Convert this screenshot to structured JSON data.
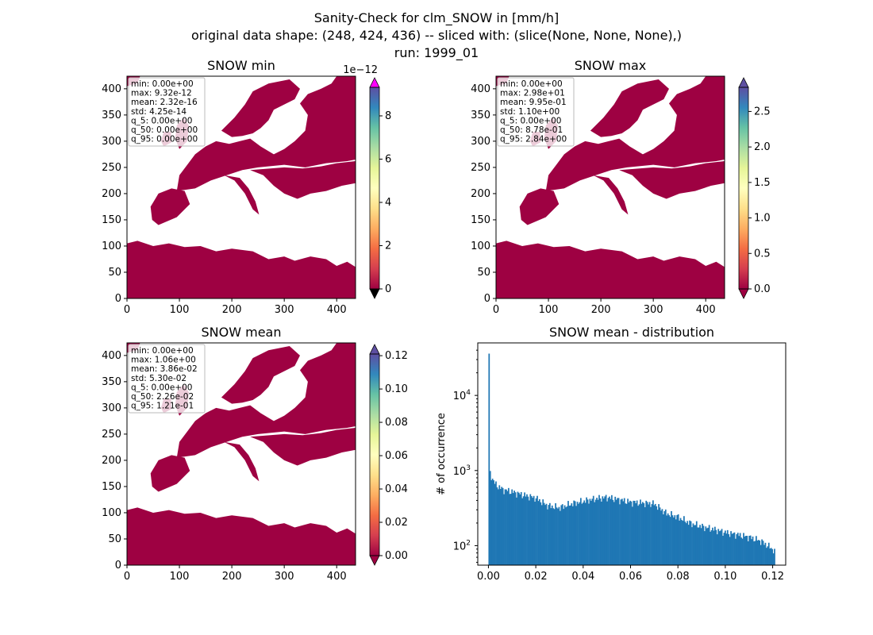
{
  "suptitle": {
    "line1": "Sanity-Check for clm_SNOW in [mm/h]",
    "line2": "original data shape: (248, 424, 436) -- sliced with: (slice(None, None, None),)",
    "line3": "run: 1999_01"
  },
  "colors": {
    "land_low": "#9e0142",
    "hist_bar": "#1f77b4",
    "cbar_over_min": "#ff00ff"
  },
  "colormap": "Spectral",
  "chart_data": [
    {
      "type": "heatmap",
      "title": "SNOW min",
      "xlim": [
        0,
        436
      ],
      "ylim": [
        0,
        424
      ],
      "xticks": [
        0,
        100,
        200,
        300,
        400
      ],
      "yticks": [
        0,
        50,
        100,
        150,
        200,
        250,
        300,
        350,
        400
      ],
      "colorbar": {
        "range": [
          0,
          9.32e-12
        ],
        "ticks": [
          0,
          2,
          4,
          6,
          8
        ],
        "offset_label": "1e−12",
        "extend": "both"
      },
      "stats": [
        "min: 0.00e+00",
        "max: 9.32e-12",
        "mean: 2.32e-16",
        "std: 4.25e-14",
        "q_5: 0.00e+00",
        "q_50: 0.00e+00",
        "q_95: 0.00e+00"
      ]
    },
    {
      "type": "heatmap",
      "title": "SNOW max",
      "xlim": [
        0,
        436
      ],
      "ylim": [
        0,
        424
      ],
      "xticks": [
        0,
        100,
        200,
        300,
        400
      ],
      "yticks": [
        0,
        50,
        100,
        150,
        200,
        250,
        300,
        350,
        400
      ],
      "colorbar": {
        "range": [
          0,
          2.84
        ],
        "ticks": [
          "0.0",
          "0.5",
          "1.0",
          "1.5",
          "2.0",
          "2.5"
        ],
        "extend": "both"
      },
      "stats": [
        "min: 0.00e+00",
        "max: 2.98e+01",
        "mean: 9.95e-01",
        "std: 1.10e+00",
        "q_5: 0.00e+00",
        "q_50: 8.78e-01",
        "q_95: 2.84e+00"
      ]
    },
    {
      "type": "heatmap",
      "title": "SNOW mean",
      "xlim": [
        0,
        436
      ],
      "ylim": [
        0,
        424
      ],
      "xticks": [
        0,
        100,
        200,
        300,
        400
      ],
      "yticks": [
        0,
        50,
        100,
        150,
        200,
        250,
        300,
        350,
        400
      ],
      "colorbar": {
        "range": [
          0,
          0.121
        ],
        "ticks": [
          "0.00",
          "0.02",
          "0.04",
          "0.06",
          "0.08",
          "0.10",
          "0.12"
        ],
        "extend": "both"
      },
      "stats": [
        "min: 0.00e+00",
        "max: 1.06e+00",
        "mean: 3.86e-02",
        "std: 5.30e-02",
        "q_5: 0.00e+00",
        "q_50: 2.26e-02",
        "q_95: 1.21e-01"
      ]
    },
    {
      "type": "bar",
      "title": "SNOW mean - distribution",
      "ylabel": "# of occurrence",
      "yscale": "log",
      "xlim": [
        -0.0045,
        0.1255
      ],
      "ylim": [
        55,
        50000
      ],
      "xticks": [
        "0.00",
        "0.02",
        "0.04",
        "0.06",
        "0.08",
        "0.10",
        "0.12"
      ],
      "yticks": [
        {
          "value": 100,
          "mantissa": "10",
          "exp": "2"
        },
        {
          "value": 1000,
          "mantissa": "10",
          "exp": "3"
        },
        {
          "value": 10000,
          "mantissa": "10",
          "exp": "4"
        }
      ],
      "bins": {
        "start": 0.0,
        "end": 0.121,
        "count": 250
      },
      "counts_keypoints": [
        [
          0.0,
          36000
        ],
        [
          0.0005,
          950
        ],
        [
          0.0015,
          800
        ],
        [
          0.003,
          650
        ],
        [
          0.006,
          560
        ],
        [
          0.01,
          520
        ],
        [
          0.015,
          470
        ],
        [
          0.02,
          430
        ],
        [
          0.025,
          340
        ],
        [
          0.03,
          320
        ],
        [
          0.035,
          360
        ],
        [
          0.04,
          390
        ],
        [
          0.045,
          420
        ],
        [
          0.05,
          440
        ],
        [
          0.055,
          410
        ],
        [
          0.06,
          380
        ],
        [
          0.065,
          370
        ],
        [
          0.07,
          360
        ],
        [
          0.075,
          270
        ],
        [
          0.08,
          240
        ],
        [
          0.085,
          200
        ],
        [
          0.09,
          180
        ],
        [
          0.095,
          165
        ],
        [
          0.1,
          150
        ],
        [
          0.105,
          140
        ],
        [
          0.11,
          130
        ],
        [
          0.115,
          115
        ],
        [
          0.12,
          90
        ],
        [
          0.121,
          80
        ]
      ]
    }
  ]
}
